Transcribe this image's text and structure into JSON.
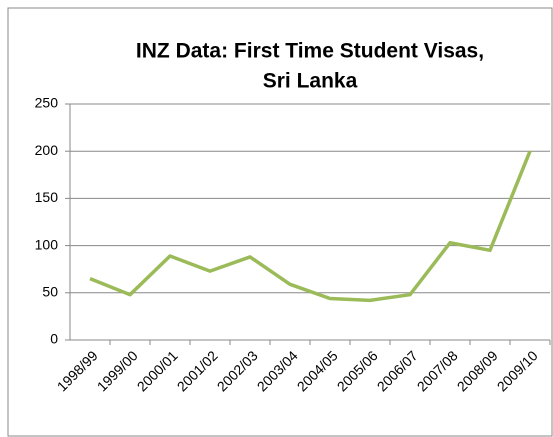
{
  "chart_data": {
    "type": "line",
    "title": [
      "INZ Data: First Time Student Visas,",
      "Sri Lanka"
    ],
    "categories": [
      "1998/99",
      "1999/00",
      "2000/01",
      "2001/02",
      "2002/03",
      "2003/04",
      "2004/05",
      "2005/06",
      "2006/07",
      "2007/08",
      "2008/09",
      "2009/10"
    ],
    "series": [
      {
        "color": "#9bbb59",
        "values": [
          65,
          48,
          89,
          73,
          88,
          59,
          44,
          42,
          48,
          103,
          95,
          200
        ]
      }
    ],
    "ylim": [
      0,
      250
    ],
    "yticks": [
      0,
      50,
      100,
      150,
      200,
      250
    ],
    "grid": true
  }
}
